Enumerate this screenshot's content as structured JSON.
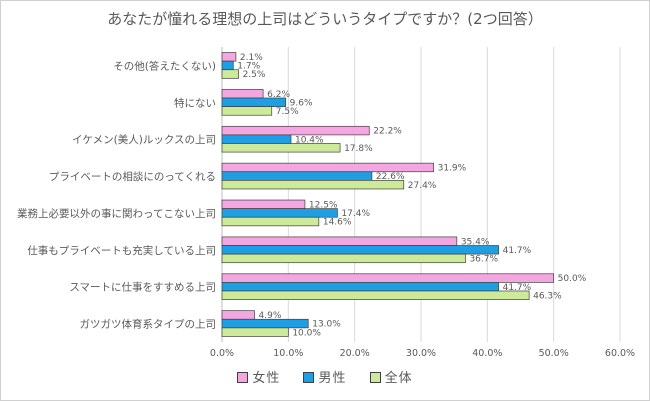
{
  "chart_data": {
    "type": "bar",
    "orientation": "horizontal",
    "title": "あなたが憧れる理想の上司はどういうタイプですか？(2つ回答）",
    "categories": [
      "その他(答えたくない)",
      "特にない",
      "イケメン(美人)ルックスの上司",
      "プライベートの相談にのってくれる",
      "業務上必要以外の事に関わってこない上司",
      "仕事もプライベートも充実している上司",
      "スマートに仕事をすすめる上司",
      "ガツガツ体育系タイプの上司"
    ],
    "series": [
      {
        "name": "女性",
        "color": "#f4a6e0",
        "values": [
          2.1,
          6.2,
          22.2,
          31.9,
          12.5,
          35.4,
          50.0,
          4.9
        ],
        "labels": [
          "2.1%",
          "6.2%",
          "22.2%",
          "31.9%",
          "12.5%",
          "35.4%",
          "50.0%",
          "4.9%"
        ]
      },
      {
        "name": "男性",
        "color": "#1e9fe3",
        "values": [
          1.7,
          9.6,
          10.4,
          22.6,
          17.4,
          41.7,
          41.7,
          13.0
        ],
        "labels": [
          "1.7%",
          "9.6%",
          "10.4%",
          "22.6%",
          "17.4%",
          "41.7%",
          "41.7%",
          "13.0%"
        ]
      },
      {
        "name": "全体",
        "color": "#cde99a",
        "values": [
          2.5,
          7.5,
          17.8,
          27.4,
          14.6,
          36.7,
          46.3,
          10.0
        ],
        "labels": [
          "2.5%",
          "7.5%",
          "17.8%",
          "27.4%",
          "14.6%",
          "36.7%",
          "46.3%",
          "10.0%"
        ]
      }
    ],
    "xlim": [
      0,
      60
    ],
    "xticks": [
      0,
      10,
      20,
      30,
      40,
      50,
      60
    ],
    "xtick_labels": [
      "0.0%",
      "10.0%",
      "20.0%",
      "30.0%",
      "40.0%",
      "50.0%",
      "60.0%"
    ],
    "xlabel": "",
    "ylabel": "",
    "grid": true,
    "legend_position": "bottom"
  },
  "colors": {
    "grid": "#d9d9d9",
    "axis": "#bfbfbf",
    "bar_border": "#404040",
    "text": "#595959"
  }
}
